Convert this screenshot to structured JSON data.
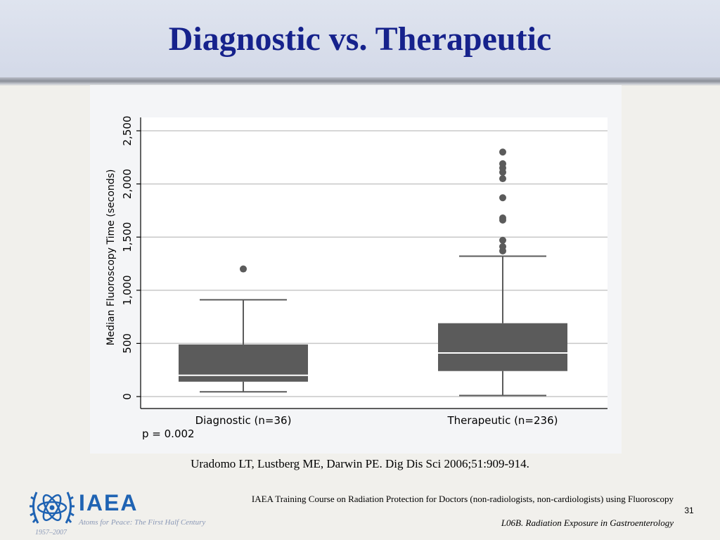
{
  "slide": {
    "title": "Diagnostic vs. Therapeutic",
    "citation": "Uradomo LT, Lustberg ME, Darwin PE. Dig Dis Sci 2006;51:909-914.",
    "footer_course": "IAEA Training Course on Radiation Protection for Doctors (non-radiologists, non-cardiologists) using Fluoroscopy",
    "footer_lecture": "L06B. Radiation Exposure in Gastroenterology",
    "page_number": "31"
  },
  "logo": {
    "name": "IAEA",
    "tagline": "Atoms for Peace: The First Half Century",
    "years": "1957–2007",
    "icon": "atom-laurel-emblem-icon"
  },
  "chart_data": {
    "type": "box",
    "title": "",
    "xlabel": "",
    "ylabel": "Median Fluoroscopy Time (seconds)",
    "ylim": [
      0,
      2500
    ],
    "yticks": [
      0,
      500,
      1000,
      1500,
      2000,
      2500
    ],
    "ytick_labels": [
      "0",
      "500",
      "1,000",
      "1,500",
      "2,000",
      "2,500"
    ],
    "grid": true,
    "annotation": "p = 0.002",
    "categories": [
      "Diagnostic (n=36)",
      "Therapeutic (n=236)"
    ],
    "boxes": [
      {
        "category": "Diagnostic (n=36)",
        "whisker_low": 45,
        "q1": 140,
        "median": 200,
        "q3": 490,
        "whisker_high": 910,
        "outliers": [
          1200
        ]
      },
      {
        "category": "Therapeutic (n=236)",
        "whisker_low": 10,
        "q1": 240,
        "median": 410,
        "q3": 690,
        "whisker_high": 1320,
        "outliers": [
          1370,
          1410,
          1470,
          1660,
          1680,
          1870,
          2050,
          2110,
          2150,
          2190,
          2300
        ]
      }
    ],
    "colors": {
      "box_fill": "#5b5b5b",
      "median_line": "#ffffff",
      "whisker": "#5b5b5b",
      "outlier": "#5b5b5b",
      "grid": "#c8c8c8",
      "plot_bg": "#ffffff"
    }
  }
}
